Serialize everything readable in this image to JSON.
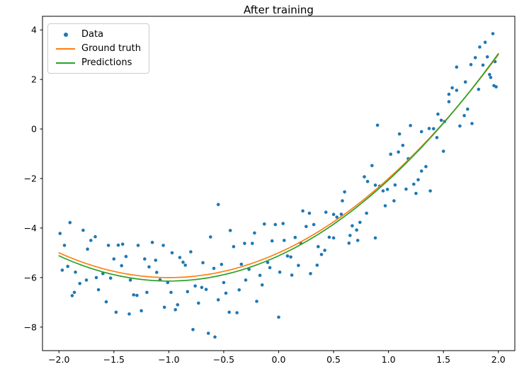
{
  "chart_data": {
    "type": "scatter",
    "title": "After training",
    "xlabel": "",
    "ylabel": "",
    "xlim": [
      -2.15,
      2.15
    ],
    "ylim": [
      -8.95,
      4.55
    ],
    "x_ticks": [
      -2.0,
      -1.5,
      -1.0,
      -0.5,
      0.0,
      0.5,
      1.0,
      1.5,
      2.0
    ],
    "x_tick_labels": [
      "−2.0",
      "−1.5",
      "−1.0",
      "−0.5",
      "0.0",
      "0.5",
      "1.0",
      "1.5",
      "2.0"
    ],
    "y_ticks": [
      -8,
      -6,
      -4,
      -2,
      0,
      2,
      4
    ],
    "y_tick_labels": [
      "−8",
      "−6",
      "−4",
      "−2",
      "0",
      "2",
      "4"
    ],
    "grid": false,
    "legend_position": "upper left",
    "series": [
      {
        "name": "Data",
        "type": "scatter",
        "color": "#1f77b4",
        "points": [
          [
            -1.95,
            -4.7
          ],
          [
            -1.81,
            -6.24
          ],
          [
            -1.67,
            -4.35
          ],
          [
            -1.53,
            -6.02
          ],
          [
            -1.39,
            -5.15
          ],
          [
            -1.25,
            -7.34
          ],
          [
            -1.11,
            -5.79
          ],
          [
            -0.97,
            -5.0
          ],
          [
            -0.83,
            -6.57
          ],
          [
            -0.69,
            -5.4
          ],
          [
            -0.55,
            -6.9
          ],
          [
            -0.41,
            -4.75
          ],
          [
            -0.27,
            -5.67
          ],
          [
            -0.13,
            -3.84
          ],
          [
            0.01,
            -5.78
          ],
          [
            0.15,
            -4.38
          ],
          [
            0.29,
            -5.84
          ],
          [
            0.43,
            -3.36
          ],
          [
            0.57,
            -3.44
          ],
          [
            0.71,
            -4.08
          ],
          [
            0.85,
            -1.48
          ],
          [
            0.99,
            -2.44
          ],
          [
            1.13,
            -0.66
          ],
          [
            1.27,
            -2.05
          ],
          [
            1.41,
            0.01
          ],
          [
            1.55,
            1.4
          ],
          [
            1.69,
            0.54
          ],
          [
            1.83,
            3.31
          ],
          [
            1.97,
            2.72
          ],
          [
            -1.88,
            -6.73
          ],
          [
            -1.74,
            -4.85
          ],
          [
            -1.6,
            -5.84
          ],
          [
            -1.46,
            -4.69
          ],
          [
            -1.32,
            -6.7
          ],
          [
            -1.18,
            -5.57
          ],
          [
            -1.04,
            -7.2
          ],
          [
            -0.9,
            -5.19
          ],
          [
            -0.76,
            -6.34
          ],
          [
            -0.62,
            -4.36
          ],
          [
            -0.48,
            -6.63
          ],
          [
            -0.34,
            -5.46
          ],
          [
            -0.2,
            -6.96
          ],
          [
            -0.06,
            -4.52
          ],
          [
            0.08,
            -5.13
          ],
          [
            0.22,
            -3.31
          ],
          [
            0.36,
            -4.75
          ],
          [
            0.5,
            -3.45
          ],
          [
            0.64,
            -4.61
          ],
          [
            0.78,
            -1.93
          ],
          [
            0.92,
            -2.31
          ],
          [
            1.06,
            -2.26
          ],
          [
            1.2,
            0.14
          ],
          [
            1.34,
            -1.52
          ],
          [
            1.48,
            0.35
          ],
          [
            1.62,
            1.56
          ],
          [
            1.76,
            0.22
          ],
          [
            1.9,
            2.91
          ],
          [
            -1.99,
            -4.22
          ],
          [
            -1.85,
            -5.78
          ],
          [
            -1.71,
            -4.5
          ],
          [
            -1.57,
            -6.98
          ],
          [
            -1.43,
            -5.52
          ],
          [
            -1.29,
            -6.72
          ],
          [
            -1.15,
            -4.58
          ],
          [
            -1.01,
            -6.2
          ],
          [
            -0.87,
            -5.38
          ],
          [
            -0.73,
            -7.03
          ],
          [
            -0.59,
            -5.63
          ],
          [
            -0.45,
            -7.4
          ],
          [
            -0.31,
            -4.62
          ],
          [
            -0.17,
            -5.91
          ],
          [
            -0.03,
            -3.86
          ],
          [
            0.11,
            -5.17
          ],
          [
            0.25,
            -3.94
          ],
          [
            0.39,
            -5.07
          ],
          [
            0.53,
            -3.56
          ],
          [
            0.67,
            -3.91
          ],
          [
            0.81,
            -2.12
          ],
          [
            0.95,
            -2.5
          ],
          [
            1.09,
            -0.93
          ],
          [
            1.23,
            -2.23
          ],
          [
            1.37,
            0.02
          ],
          [
            1.51,
            0.3
          ],
          [
            1.65,
            0.12
          ],
          [
            1.79,
            2.88
          ],
          [
            1.93,
            2.08
          ],
          [
            -1.92,
            -5.55
          ],
          [
            -1.78,
            -4.09
          ],
          [
            -1.64,
            -6.49
          ],
          [
            -1.5,
            -5.25
          ],
          [
            -1.36,
            -7.47
          ],
          [
            -1.22,
            -5.25
          ],
          [
            -1.08,
            -6.09
          ],
          [
            -0.94,
            -7.3
          ],
          [
            -0.8,
            -4.96
          ],
          [
            -0.66,
            -6.48
          ],
          [
            -0.52,
            -5.47
          ],
          [
            -0.38,
            -7.42
          ],
          [
            -0.24,
            -4.62
          ],
          [
            -0.1,
            -5.39
          ],
          [
            0.04,
            -3.82
          ],
          [
            0.18,
            -5.51
          ],
          [
            0.32,
            -3.86
          ],
          [
            0.46,
            -4.37
          ],
          [
            0.6,
            -2.54
          ],
          [
            0.74,
            -3.77
          ],
          [
            0.88,
            -2.27
          ],
          [
            1.02,
            -1.02
          ],
          [
            1.16,
            -2.43
          ],
          [
            1.3,
            -0.11
          ],
          [
            1.44,
            -0.35
          ],
          [
            1.58,
            1.66
          ],
          [
            1.72,
            0.8
          ],
          [
            1.86,
            2.58
          ],
          [
            1.95,
            3.85
          ],
          [
            -1.97,
            -5.7
          ],
          [
            -1.9,
            -3.78
          ],
          [
            -1.86,
            -6.6
          ],
          [
            -1.75,
            -6.1
          ],
          [
            -1.66,
            -6.0
          ],
          [
            -1.55,
            -4.7
          ],
          [
            -1.48,
            -7.4
          ],
          [
            -1.42,
            -4.65
          ],
          [
            -1.35,
            -6.1
          ],
          [
            -1.28,
            -4.7
          ],
          [
            -1.2,
            -6.6
          ],
          [
            -1.12,
            -5.3
          ],
          [
            -1.05,
            -4.7
          ],
          [
            -0.98,
            -6.6
          ],
          [
            -0.92,
            -7.1
          ],
          [
            -0.85,
            -5.5
          ],
          [
            -0.78,
            -8.1
          ],
          [
            -0.7,
            -6.4
          ],
          [
            -0.64,
            -8.25
          ],
          [
            -0.58,
            -8.4
          ],
          [
            -0.55,
            -3.05
          ],
          [
            -0.5,
            -6.2
          ],
          [
            -0.44,
            -4.1
          ],
          [
            -0.36,
            -6.5
          ],
          [
            -0.3,
            -6.1
          ],
          [
            -0.22,
            -4.2
          ],
          [
            -0.15,
            -6.3
          ],
          [
            -0.08,
            -5.6
          ],
          [
            0.0,
            -7.6
          ],
          [
            0.05,
            -4.5
          ],
          [
            0.12,
            -5.9
          ],
          [
            0.2,
            -4.6
          ],
          [
            0.28,
            -3.4
          ],
          [
            0.35,
            -5.5
          ],
          [
            0.42,
            -4.9
          ],
          [
            0.5,
            -4.4
          ],
          [
            0.58,
            -2.9
          ],
          [
            0.65,
            -4.3
          ],
          [
            0.72,
            -4.5
          ],
          [
            0.8,
            -3.4
          ],
          [
            0.88,
            -4.4
          ],
          [
            0.9,
            0.15
          ],
          [
            0.97,
            -3.1
          ],
          [
            1.05,
            -2.9
          ],
          [
            1.1,
            -0.2
          ],
          [
            1.18,
            -1.2
          ],
          [
            1.25,
            -2.6
          ],
          [
            1.3,
            -1.7
          ],
          [
            1.38,
            -2.5
          ],
          [
            1.45,
            0.6
          ],
          [
            1.5,
            -0.9
          ],
          [
            1.55,
            1.1
          ],
          [
            1.62,
            2.5
          ],
          [
            1.7,
            1.9
          ],
          [
            1.75,
            2.6
          ],
          [
            1.82,
            1.6
          ],
          [
            1.88,
            3.5
          ],
          [
            1.92,
            2.2
          ],
          [
            1.96,
            1.75
          ],
          [
            1.98,
            1.7
          ]
        ]
      },
      {
        "name": "Ground truth",
        "type": "line",
        "color": "#ff7f0e",
        "model": "quadratic",
        "coefficients": {
          "a": 1.0,
          "b": 2.0,
          "c": -5.0
        },
        "x_range": [
          -2.0,
          2.0
        ]
      },
      {
        "name": "Predictions",
        "type": "line",
        "color": "#2ca02c",
        "model": "quadratic",
        "coefficients": {
          "a": 1.02,
          "b": 2.04,
          "c": -5.12
        },
        "x_range": [
          -2.0,
          2.0
        ]
      }
    ]
  }
}
